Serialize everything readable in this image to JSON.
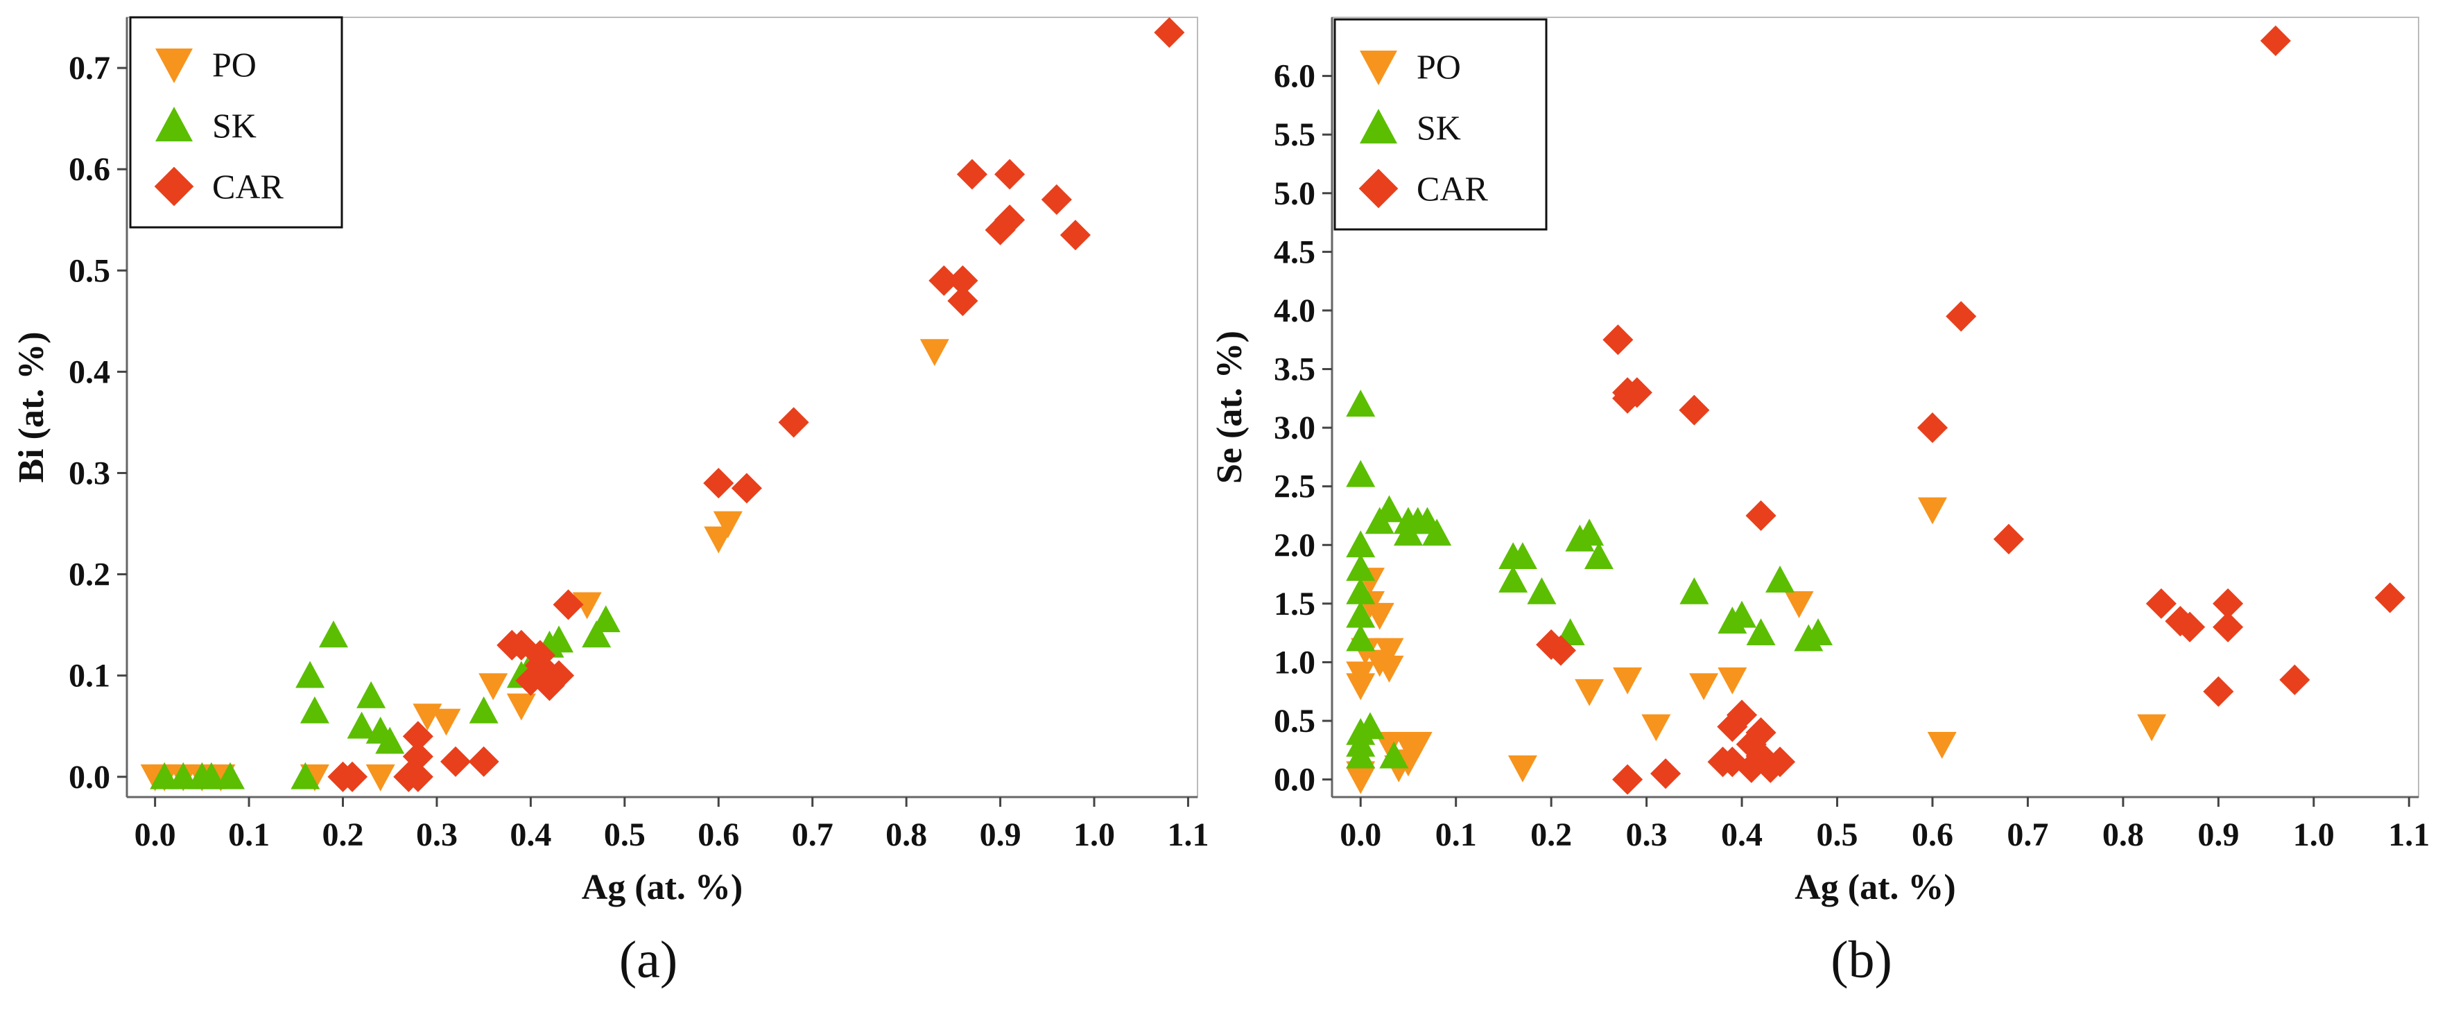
{
  "colors": {
    "PO": "#F7941D",
    "SK": "#5BBE00",
    "CAR": "#E8401C",
    "frame": "#bbbbbb"
  },
  "legend": [
    {
      "key": "PO",
      "label": "PO",
      "marker": "triangle-down"
    },
    {
      "key": "SK",
      "label": "SK",
      "marker": "triangle-up"
    },
    {
      "key": "CAR",
      "label": "CAR",
      "marker": "diamond"
    }
  ],
  "chart_data": [
    {
      "type": "scatter",
      "panel_label": "(a)",
      "xlabel": "Ag (at. %)",
      "ylabel": "Bi (at. %)",
      "xlim": [
        -0.03,
        1.11
      ],
      "ylim": [
        -0.02,
        0.75
      ],
      "xticks": [
        0.0,
        0.1,
        0.2,
        0.3,
        0.4,
        0.5,
        0.6,
        0.7,
        0.8,
        0.9,
        1.0,
        1.1
      ],
      "xtick_labels": [
        "0.0",
        "0.1",
        "0.2",
        "0.3",
        "0.4",
        "0.5",
        "0.6",
        "0.7",
        "0.8",
        "0.9",
        "1.0",
        "1.1"
      ],
      "yticks": [
        0.0,
        0.1,
        0.2,
        0.3,
        0.4,
        0.5,
        0.6,
        0.7
      ],
      "ytick_labels": [
        "0.0",
        "0.1",
        "0.2",
        "0.3",
        "0.4",
        "0.5",
        "0.6",
        "0.7"
      ],
      "legend_position": "top-left",
      "series": [
        {
          "name": "PO",
          "points": [
            [
              0.0,
              0.0
            ],
            [
              0.01,
              0.0
            ],
            [
              0.03,
              0.0
            ],
            [
              0.05,
              0.0
            ],
            [
              0.07,
              0.0
            ],
            [
              0.17,
              0.0
            ],
            [
              0.24,
              0.0
            ],
            [
              0.29,
              0.06
            ],
            [
              0.31,
              0.055
            ],
            [
              0.36,
              0.09
            ],
            [
              0.39,
              0.07
            ],
            [
              0.46,
              0.17
            ],
            [
              0.6,
              0.235
            ],
            [
              0.61,
              0.25
            ],
            [
              0.83,
              0.42
            ]
          ]
        },
        {
          "name": "SK",
          "points": [
            [
              0.01,
              0.0
            ],
            [
              0.03,
              0.0
            ],
            [
              0.05,
              0.0
            ],
            [
              0.06,
              0.0
            ],
            [
              0.08,
              0.0
            ],
            [
              0.16,
              0.0
            ],
            [
              0.165,
              0.1
            ],
            [
              0.17,
              0.065
            ],
            [
              0.19,
              0.14
            ],
            [
              0.22,
              0.05
            ],
            [
              0.23,
              0.08
            ],
            [
              0.24,
              0.045
            ],
            [
              0.25,
              0.035
            ],
            [
              0.35,
              0.065
            ],
            [
              0.39,
              0.1
            ],
            [
              0.4,
              0.11
            ],
            [
              0.42,
              0.13
            ],
            [
              0.43,
              0.135
            ],
            [
              0.47,
              0.14
            ],
            [
              0.48,
              0.155
            ]
          ]
        },
        {
          "name": "CAR",
          "points": [
            [
              0.2,
              0.0
            ],
            [
              0.21,
              0.0
            ],
            [
              0.27,
              0.0
            ],
            [
              0.28,
              0.0
            ],
            [
              0.28,
              0.02
            ],
            [
              0.28,
              0.04
            ],
            [
              0.32,
              0.015
            ],
            [
              0.35,
              0.015
            ],
            [
              0.38,
              0.13
            ],
            [
              0.39,
              0.13
            ],
            [
              0.4,
              0.095
            ],
            [
              0.41,
              0.11
            ],
            [
              0.41,
              0.12
            ],
            [
              0.42,
              0.09
            ],
            [
              0.42,
              0.1
            ],
            [
              0.43,
              0.1
            ],
            [
              0.44,
              0.17
            ],
            [
              0.6,
              0.29
            ],
            [
              0.63,
              0.285
            ],
            [
              0.68,
              0.35
            ],
            [
              0.84,
              0.49
            ],
            [
              0.86,
              0.49
            ],
            [
              0.86,
              0.47
            ],
            [
              0.87,
              0.595
            ],
            [
              0.9,
              0.54
            ],
            [
              0.91,
              0.595
            ],
            [
              0.91,
              0.55
            ],
            [
              0.96,
              0.57
            ],
            [
              0.98,
              0.535
            ],
            [
              1.08,
              0.735
            ]
          ]
        }
      ]
    },
    {
      "type": "scatter",
      "panel_label": "(b)",
      "xlabel": "Ag (at. %)",
      "ylabel": "Se (at. %)",
      "xlim": [
        -0.03,
        1.11
      ],
      "ylim": [
        -0.15,
        6.5
      ],
      "xticks": [
        0.0,
        0.1,
        0.2,
        0.3,
        0.4,
        0.5,
        0.6,
        0.7,
        0.8,
        0.9,
        1.0,
        1.1
      ],
      "xtick_labels": [
        "0.0",
        "0.1",
        "0.2",
        "0.3",
        "0.4",
        "0.5",
        "0.6",
        "0.7",
        "0.8",
        "0.9",
        "1.0",
        "1.1"
      ],
      "yticks": [
        0.0,
        0.5,
        1.0,
        1.5,
        2.0,
        2.5,
        3.0,
        3.5,
        4.0,
        4.5,
        5.0,
        5.5,
        6.0
      ],
      "ytick_labels": [
        "0.0",
        "0.5",
        "1.0",
        "1.5",
        "2.0",
        "2.5",
        "3.0",
        "3.5",
        "4.0",
        "4.5",
        "5.0",
        "5.5",
        "6.0"
      ],
      "legend_position": "top-left",
      "series": [
        {
          "name": "PO",
          "points": [
            [
              0.0,
              0.0
            ],
            [
              0.0,
              0.05
            ],
            [
              0.0,
              0.8
            ],
            [
              0.0,
              0.9
            ],
            [
              0.005,
              1.1
            ],
            [
              0.01,
              1.7
            ],
            [
              0.01,
              1.5
            ],
            [
              0.02,
              1.4
            ],
            [
              0.02,
              1.0
            ],
            [
              0.03,
              1.1
            ],
            [
              0.03,
              0.95
            ],
            [
              0.03,
              0.3
            ],
            [
              0.04,
              0.1
            ],
            [
              0.05,
              0.3
            ],
            [
              0.05,
              0.15
            ],
            [
              0.06,
              0.3
            ],
            [
              0.17,
              0.1
            ],
            [
              0.24,
              0.75
            ],
            [
              0.28,
              0.85
            ],
            [
              0.31,
              0.45
            ],
            [
              0.36,
              0.8
            ],
            [
              0.39,
              0.85
            ],
            [
              0.46,
              1.5
            ],
            [
              0.6,
              2.3
            ],
            [
              0.61,
              0.3
            ],
            [
              0.83,
              0.45
            ]
          ]
        },
        {
          "name": "SK",
          "points": [
            [
              0.0,
              3.2
            ],
            [
              0.0,
              2.6
            ],
            [
              0.0,
              2.0
            ],
            [
              0.0,
              1.8
            ],
            [
              0.0,
              1.6
            ],
            [
              0.0,
              1.4
            ],
            [
              0.0,
              1.2
            ],
            [
              0.0,
              0.4
            ],
            [
              0.0,
              0.3
            ],
            [
              0.0,
              0.2
            ],
            [
              0.01,
              0.45
            ],
            [
              0.02,
              2.2
            ],
            [
              0.03,
              2.3
            ],
            [
              0.035,
              0.2
            ],
            [
              0.05,
              2.1
            ],
            [
              0.05,
              2.2
            ],
            [
              0.06,
              2.2
            ],
            [
              0.07,
              2.2
            ],
            [
              0.08,
              2.1
            ],
            [
              0.16,
              1.7
            ],
            [
              0.16,
              1.9
            ],
            [
              0.17,
              1.9
            ],
            [
              0.19,
              1.6
            ],
            [
              0.22,
              1.25
            ],
            [
              0.23,
              2.05
            ],
            [
              0.24,
              2.1
            ],
            [
              0.25,
              1.9
            ],
            [
              0.35,
              1.6
            ],
            [
              0.39,
              1.35
            ],
            [
              0.4,
              1.4
            ],
            [
              0.42,
              1.25
            ],
            [
              0.44,
              1.7
            ],
            [
              0.47,
              1.2
            ],
            [
              0.48,
              1.25
            ]
          ]
        },
        {
          "name": "CAR",
          "points": [
            [
              0.2,
              1.15
            ],
            [
              0.21,
              1.1
            ],
            [
              0.27,
              3.75
            ],
            [
              0.28,
              3.25
            ],
            [
              0.28,
              3.3
            ],
            [
              0.28,
              0.0
            ],
            [
              0.29,
              3.3
            ],
            [
              0.32,
              0.05
            ],
            [
              0.35,
              3.15
            ],
            [
              0.38,
              0.15
            ],
            [
              0.39,
              0.15
            ],
            [
              0.39,
              0.45
            ],
            [
              0.4,
              0.55
            ],
            [
              0.41,
              0.3
            ],
            [
              0.41,
              0.1
            ],
            [
              0.42,
              0.4
            ],
            [
              0.42,
              0.2
            ],
            [
              0.42,
              2.25
            ],
            [
              0.43,
              0.1
            ],
            [
              0.44,
              0.15
            ],
            [
              0.6,
              3.0
            ],
            [
              0.63,
              3.95
            ],
            [
              0.68,
              2.05
            ],
            [
              0.84,
              1.5
            ],
            [
              0.86,
              1.35
            ],
            [
              0.87,
              1.3
            ],
            [
              0.9,
              0.75
            ],
            [
              0.91,
              1.5
            ],
            [
              0.91,
              1.3
            ],
            [
              0.96,
              6.3
            ],
            [
              0.98,
              0.85
            ],
            [
              1.08,
              1.55
            ]
          ]
        }
      ]
    }
  ]
}
